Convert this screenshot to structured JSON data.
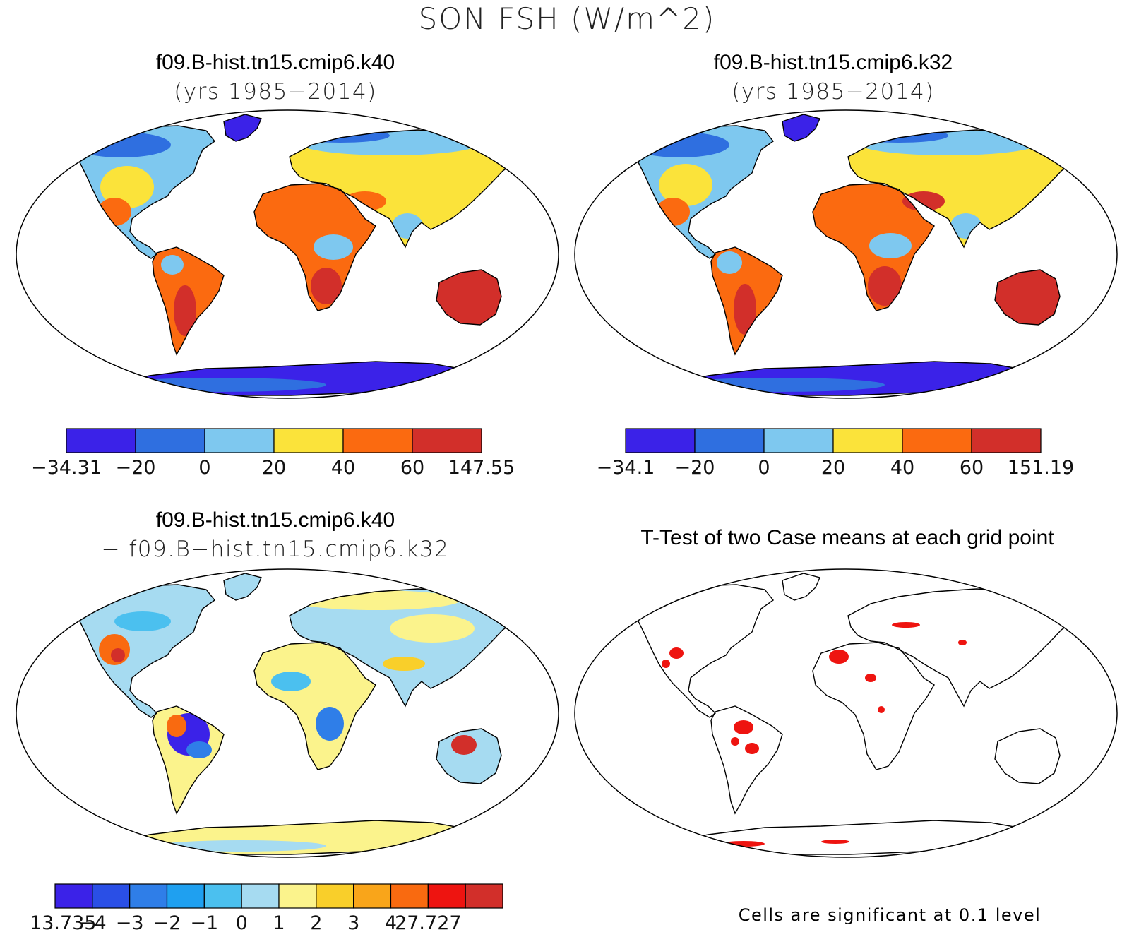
{
  "main_title": "SON FSH (W/m^2)",
  "panels": [
    {
      "id": "case1",
      "title": "f09.B-hist.tn15.cmip6.k40",
      "subtitle": "(yrs 1985−2014)",
      "colorbar": {
        "colors": [
          "#3b22e8",
          "#2f6fe0",
          "#7ec8ef",
          "#fbe33a",
          "#fb6a10",
          "#d22f2a"
        ],
        "labels": [
          "−34.31",
          "−20",
          "0",
          "20",
          "40",
          "60",
          "147.55"
        ]
      }
    },
    {
      "id": "case2",
      "title": "f09.B-hist.tn15.cmip6.k32",
      "subtitle": "(yrs 1985−2014)",
      "colorbar": {
        "colors": [
          "#3b22e8",
          "#2f6fe0",
          "#7ec8ef",
          "#fbe33a",
          "#fb6a10",
          "#d22f2a"
        ],
        "labels": [
          "−34.1",
          "−20",
          "0",
          "20",
          "40",
          "60",
          "151.19"
        ]
      }
    },
    {
      "id": "diff",
      "title": "f09.B-hist.tn15.cmip6.k40",
      "subtitle": "− f09.B−hist.tn15.cmip6.k32",
      "colorbar": {
        "colors": [
          "#3b22e8",
          "#2a4fe6",
          "#2f7ee8",
          "#1fa0f0",
          "#4bc0ef",
          "#a6dbf1",
          "#fbf38c",
          "#f9cf2a",
          "#f9a51a",
          "#f96a10",
          "#ee1410",
          "#d22f2a"
        ],
        "labels": [
          "−13.735",
          "−4",
          "−3",
          "−2",
          "−1",
          "0",
          "1",
          "2",
          "3",
          "4",
          "27.727"
        ]
      }
    },
    {
      "id": "ttest",
      "title": "T-Test of two Case means at each grid point",
      "footnote": "Cells are significant at 0.1 level"
    }
  ]
}
